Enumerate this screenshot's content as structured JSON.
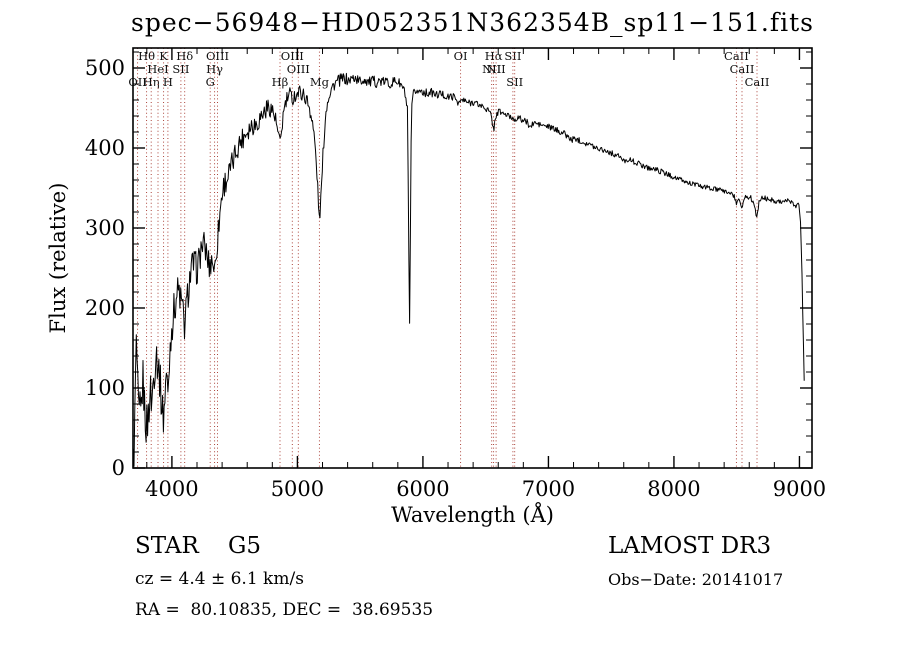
{
  "chart_data": {
    "type": "line",
    "title": "spec−56948−HD052351N362354B_sp11−151.fits",
    "xlabel": "Wavelength (Å)",
    "ylabel": "Flux (relative)",
    "xlim": [
      3690,
      9100
    ],
    "ylim": [
      0,
      525
    ],
    "xticks": [
      4000,
      5000,
      6000,
      7000,
      8000,
      9000
    ],
    "yticks": [
      0,
      100,
      200,
      300,
      400,
      500
    ],
    "grid": false,
    "line_color": "#000000",
    "spectral_line_color": "#a33127",
    "spectral_lines": [
      {
        "wavelength": 3727,
        "label": "OII",
        "row": 3
      },
      {
        "wavelength": 3798,
        "label": "Hθ",
        "row": 1
      },
      {
        "wavelength": 3835,
        "label": "Hη",
        "row": 3
      },
      {
        "wavelength": 3889,
        "label": "HeI",
        "row": 2
      },
      {
        "wavelength": 3934,
        "label": "K",
        "row": 1
      },
      {
        "wavelength": 3968,
        "label": "H",
        "row": 3
      },
      {
        "wavelength": 4072,
        "label": "SII",
        "row": 2
      },
      {
        "wavelength": 4102,
        "label": "Hδ",
        "row": 1
      },
      {
        "wavelength": 4305,
        "label": "G",
        "row": 3
      },
      {
        "wavelength": 4340,
        "label": "Hγ",
        "row": 2
      },
      {
        "wavelength": 4363,
        "label": "OIII",
        "row": 1
      },
      {
        "wavelength": 4861,
        "label": "Hβ",
        "row": 3
      },
      {
        "wavelength": 4959,
        "label": "OIII",
        "row": 1
      },
      {
        "wavelength": 5007,
        "label": "OIII",
        "row": 2
      },
      {
        "wavelength": 5175,
        "label": "Mg",
        "row": 3
      },
      {
        "wavelength": 6300,
        "label": "OI",
        "row": 1
      },
      {
        "wavelength": 6548,
        "label": "NII",
        "row": 2
      },
      {
        "wavelength": 6563,
        "label": "Hα",
        "row": 1
      },
      {
        "wavelength": 6583,
        "label": "NII",
        "row": 2
      },
      {
        "wavelength": 6717,
        "label": "SII",
        "row": 1
      },
      {
        "wavelength": 6731,
        "label": "SII",
        "row": 3
      },
      {
        "wavelength": 8498,
        "label": "CaII",
        "row": 1
      },
      {
        "wavelength": 8542,
        "label": "CaII",
        "row": 2
      },
      {
        "wavelength": 8662,
        "label": "CaII",
        "row": 3
      }
    ],
    "spectrum": [
      [
        3692,
        3
      ],
      [
        3698,
        25
      ],
      [
        3705,
        60
      ],
      [
        3712,
        130
      ],
      [
        3718,
        158
      ],
      [
        3724,
        120
      ],
      [
        3730,
        72
      ],
      [
        3738,
        55
      ],
      [
        3745,
        68
      ],
      [
        3752,
        62
      ],
      [
        3760,
        85
      ],
      [
        3768,
        112
      ],
      [
        3776,
        95
      ],
      [
        3784,
        72
      ],
      [
        3792,
        60
      ],
      [
        3800,
        52
      ],
      [
        3810,
        62
      ],
      [
        3820,
        85
      ],
      [
        3830,
        95
      ],
      [
        3840,
        82
      ],
      [
        3850,
        105
      ],
      [
        3862,
        128
      ],
      [
        3875,
        148
      ],
      [
        3888,
        132
      ],
      [
        3900,
        118
      ],
      [
        3912,
        95
      ],
      [
        3922,
        75
      ],
      [
        3934,
        62
      ],
      [
        3945,
        95
      ],
      [
        3956,
        120
      ],
      [
        3968,
        88
      ],
      [
        3980,
        135
      ],
      [
        3992,
        168
      ],
      [
        4005,
        185
      ],
      [
        4020,
        200
      ],
      [
        4035,
        215
      ],
      [
        4050,
        222
      ],
      [
        4065,
        215
      ],
      [
        4080,
        202
      ],
      [
        4092,
        188
      ],
      [
        4102,
        175
      ],
      [
        4112,
        195
      ],
      [
        4125,
        215
      ],
      [
        4140,
        235
      ],
      [
        4155,
        248
      ],
      [
        4170,
        255
      ],
      [
        4185,
        252
      ],
      [
        4200,
        248
      ],
      [
        4215,
        258
      ],
      [
        4230,
        272
      ],
      [
        4245,
        280
      ],
      [
        4260,
        276
      ],
      [
        4275,
        268
      ],
      [
        4290,
        258
      ],
      [
        4302,
        250
      ],
      [
        4315,
        262
      ],
      [
        4328,
        258
      ],
      [
        4340,
        246
      ],
      [
        4352,
        268
      ],
      [
        4365,
        288
      ],
      [
        4380,
        315
      ],
      [
        4395,
        338
      ],
      [
        4410,
        352
      ],
      [
        4425,
        358
      ],
      [
        4440,
        362
      ],
      [
        4455,
        368
      ],
      [
        4470,
        375
      ],
      [
        4485,
        382
      ],
      [
        4500,
        390
      ],
      [
        4515,
        398
      ],
      [
        4530,
        404
      ],
      [
        4545,
        408
      ],
      [
        4560,
        412
      ],
      [
        4575,
        416
      ],
      [
        4590,
        420
      ],
      [
        4610,
        424
      ],
      [
        4630,
        428
      ],
      [
        4650,
        430
      ],
      [
        4670,
        430
      ],
      [
        4690,
        434
      ],
      [
        4710,
        440
      ],
      [
        4730,
        444
      ],
      [
        4750,
        448
      ],
      [
        4770,
        452
      ],
      [
        4790,
        450
      ],
      [
        4810,
        444
      ],
      [
        4830,
        432
      ],
      [
        4845,
        418
      ],
      [
        4861,
        402
      ],
      [
        4875,
        425
      ],
      [
        4890,
        445
      ],
      [
        4905,
        455
      ],
      [
        4920,
        462
      ],
      [
        4940,
        466
      ],
      [
        4960,
        462
      ],
      [
        4980,
        466
      ],
      [
        5000,
        468
      ],
      [
        5020,
        470
      ],
      [
        5040,
        468
      ],
      [
        5060,
        464
      ],
      [
        5080,
        458
      ],
      [
        5100,
        448
      ],
      [
        5120,
        432
      ],
      [
        5140,
        405
      ],
      [
        5158,
        362
      ],
      [
        5175,
        308
      ],
      [
        5190,
        345
      ],
      [
        5205,
        395
      ],
      [
        5220,
        432
      ],
      [
        5235,
        455
      ],
      [
        5250,
        466
      ],
      [
        5270,
        474
      ],
      [
        5290,
        479
      ],
      [
        5310,
        482
      ],
      [
        5330,
        484
      ],
      [
        5355,
        486
      ],
      [
        5380,
        487
      ],
      [
        5405,
        484
      ],
      [
        5430,
        486
      ],
      [
        5455,
        488
      ],
      [
        5480,
        485
      ],
      [
        5505,
        483
      ],
      [
        5530,
        486
      ],
      [
        5555,
        484
      ],
      [
        5580,
        482
      ],
      [
        5605,
        484
      ],
      [
        5630,
        482
      ],
      [
        5655,
        484
      ],
      [
        5680,
        482
      ],
      [
        5705,
        484
      ],
      [
        5730,
        480
      ],
      [
        5755,
        482
      ],
      [
        5780,
        484
      ],
      [
        5805,
        482
      ],
      [
        5830,
        478
      ],
      [
        5855,
        470
      ],
      [
        5878,
        445
      ],
      [
        5893,
        158
      ],
      [
        5908,
        445
      ],
      [
        5925,
        468
      ],
      [
        5945,
        472
      ],
      [
        5965,
        470
      ],
      [
        5985,
        472
      ],
      [
        6010,
        470
      ],
      [
        6035,
        468
      ],
      [
        6060,
        470
      ],
      [
        6085,
        468
      ],
      [
        6110,
        466
      ],
      [
        6140,
        468
      ],
      [
        6170,
        466
      ],
      [
        6200,
        463
      ],
      [
        6230,
        465
      ],
      [
        6260,
        462
      ],
      [
        6288,
        456
      ],
      [
        6310,
        460
      ],
      [
        6340,
        458
      ],
      [
        6370,
        456
      ],
      [
        6400,
        458
      ],
      [
        6430,
        455
      ],
      [
        6460,
        453
      ],
      [
        6490,
        451
      ],
      [
        6520,
        447
      ],
      [
        6545,
        440
      ],
      [
        6563,
        422
      ],
      [
        6580,
        440
      ],
      [
        6605,
        446
      ],
      [
        6630,
        444
      ],
      [
        6655,
        442
      ],
      [
        6680,
        440
      ],
      [
        6705,
        438
      ],
      [
        6730,
        436
      ],
      [
        6755,
        438
      ],
      [
        6780,
        436
      ],
      [
        6805,
        434
      ],
      [
        6830,
        432
      ],
      [
        6860,
        426
      ],
      [
        6885,
        432
      ],
      [
        6910,
        430
      ],
      [
        6935,
        429
      ],
      [
        6960,
        428
      ],
      [
        6985,
        427
      ],
      [
        7010,
        426
      ],
      [
        7040,
        424
      ],
      [
        7070,
        422
      ],
      [
        7100,
        420
      ],
      [
        7130,
        418
      ],
      [
        7160,
        413
      ],
      [
        7185,
        410
      ],
      [
        7210,
        412
      ],
      [
        7240,
        410
      ],
      [
        7270,
        408
      ],
      [
        7300,
        406
      ],
      [
        7330,
        404
      ],
      [
        7360,
        402
      ],
      [
        7390,
        400
      ],
      [
        7420,
        399
      ],
      [
        7450,
        397
      ],
      [
        7480,
        395
      ],
      [
        7510,
        393
      ],
      [
        7540,
        391
      ],
      [
        7570,
        389
      ],
      [
        7600,
        383
      ],
      [
        7620,
        386
      ],
      [
        7650,
        385
      ],
      [
        7680,
        383
      ],
      [
        7710,
        381
      ],
      [
        7740,
        379
      ],
      [
        7770,
        377
      ],
      [
        7800,
        375
      ],
      [
        7830,
        374
      ],
      [
        7860,
        373
      ],
      [
        7890,
        371
      ],
      [
        7920,
        369
      ],
      [
        7950,
        367
      ],
      [
        7980,
        365
      ],
      [
        8010,
        363
      ],
      [
        8040,
        361
      ],
      [
        8070,
        359
      ],
      [
        8100,
        357
      ],
      [
        8130,
        356
      ],
      [
        8160,
        355
      ],
      [
        8190,
        353
      ],
      [
        8220,
        352
      ],
      [
        8250,
        351
      ],
      [
        8280,
        350
      ],
      [
        8310,
        349
      ],
      [
        8340,
        348
      ],
      [
        8370,
        347
      ],
      [
        8400,
        346
      ],
      [
        8430,
        345
      ],
      [
        8460,
        343
      ],
      [
        8485,
        338
      ],
      [
        8498,
        328
      ],
      [
        8512,
        338
      ],
      [
        8530,
        334
      ],
      [
        8542,
        322
      ],
      [
        8556,
        336
      ],
      [
        8580,
        340
      ],
      [
        8610,
        338
      ],
      [
        8640,
        330
      ],
      [
        8662,
        312
      ],
      [
        8680,
        334
      ],
      [
        8705,
        338
      ],
      [
        8730,
        337
      ],
      [
        8755,
        336
      ],
      [
        8780,
        335
      ],
      [
        8805,
        334
      ],
      [
        8830,
        334
      ],
      [
        8855,
        333
      ],
      [
        8880,
        334
      ],
      [
        8905,
        334
      ],
      [
        8930,
        332
      ],
      [
        8955,
        330
      ],
      [
        8975,
        328
      ],
      [
        8995,
        330
      ],
      [
        9008,
        310
      ],
      [
        9018,
        260
      ],
      [
        9028,
        180
      ],
      [
        9040,
        92
      ]
    ],
    "noise": {
      "blue_amplitude": 30,
      "red_amplitude": 3,
      "decay_scale": 900
    }
  },
  "footer": {
    "type_label": "STAR    G5",
    "survey": "LAMOST DR3",
    "cz_label": "cz = 4.4 ± 6.1 km/s",
    "obs_date_label": "Obs−Date: 20141017",
    "coords_label": "RA =  80.10835, DEC =  38.69535"
  }
}
